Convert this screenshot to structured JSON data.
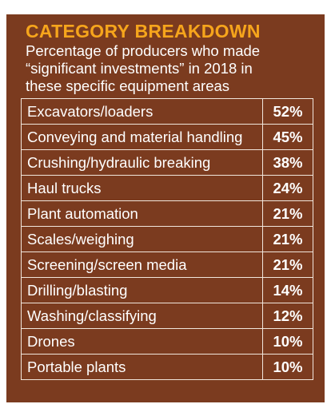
{
  "header": {
    "title": "CATEGORY BREAKDOWN",
    "subtitle": "Percentage of producers who made “significant investments” in 2018 in these specific equipment areas"
  },
  "table": {
    "rows": [
      [
        "Excavators/loaders",
        "52%"
      ],
      [
        "Conveying and material handling",
        "45%"
      ],
      [
        "Crushing/hydraulic breaking",
        "38%"
      ],
      [
        "Haul trucks",
        "24%"
      ],
      [
        "Plant automation",
        "21%"
      ],
      [
        "Scales/weighing",
        "21%"
      ],
      [
        "Screening/screen media",
        "21%"
      ],
      [
        "Drilling/blasting",
        "14%"
      ],
      [
        "Washing/classifying",
        "12%"
      ],
      [
        "Drones",
        "10%"
      ],
      [
        "Portable plants",
        "10%"
      ]
    ]
  }
}
